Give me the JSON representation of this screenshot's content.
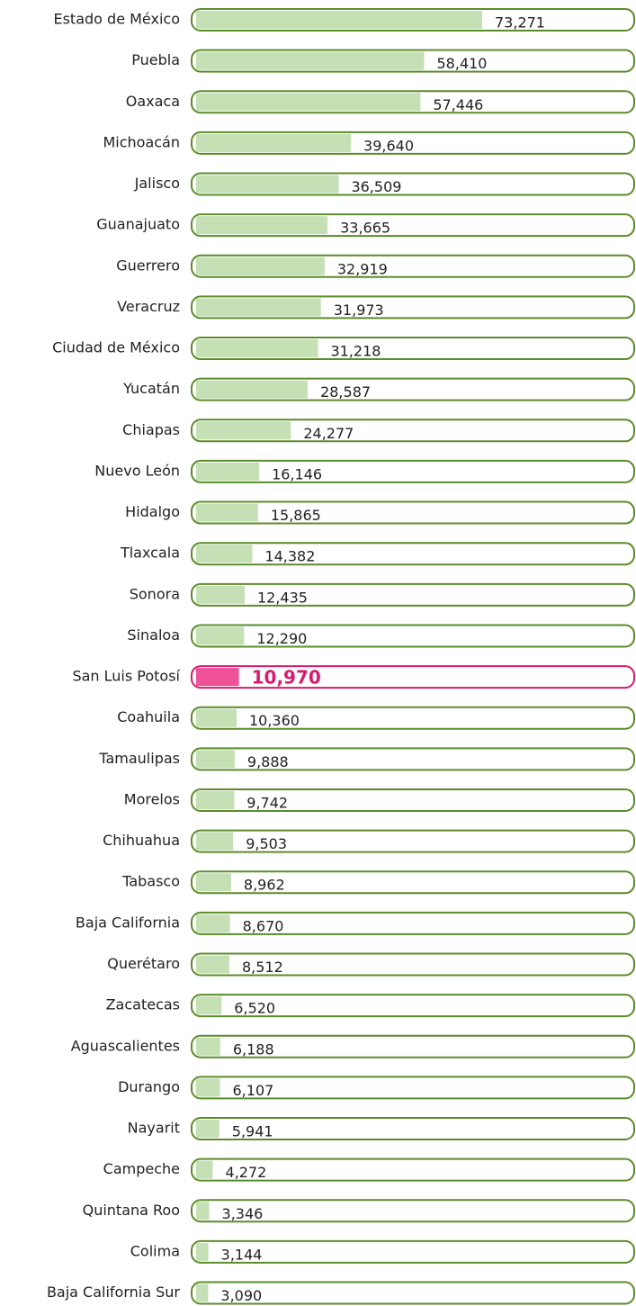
{
  "chart_data": {
    "type": "bar",
    "orientation": "horizontal",
    "categories": [
      "Estado de México",
      "Puebla",
      "Oaxaca",
      "Michoacán",
      "Jalisco",
      "Guanajuato",
      "Guerrero",
      "Veracruz",
      "Ciudad de México",
      "Yucatán",
      "Chiapas",
      "Nuevo León",
      "Hidalgo",
      "Tlaxcala",
      "Sonora",
      "Sinaloa",
      "San Luis Potosí",
      "Coahuila",
      "Tamaulipas",
      "Morelos",
      "Chihuahua",
      "Tabasco",
      "Baja California",
      "Querétaro",
      "Zacatecas",
      "Aguascalientes",
      "Durango",
      "Nayarit",
      "Campeche",
      "Quintana Roo",
      "Colima",
      "Baja California Sur"
    ],
    "values": [
      73271,
      58410,
      57446,
      39640,
      36509,
      33665,
      32919,
      31973,
      31218,
      28587,
      24277,
      16146,
      15865,
      14382,
      12435,
      12290,
      10970,
      10360,
      9888,
      9742,
      9503,
      8962,
      8670,
      8512,
      6520,
      6188,
      6107,
      5941,
      4272,
      3346,
      3144,
      3090
    ],
    "value_labels": [
      "73,271",
      "58,410",
      "57,446",
      "39,640",
      "36,509",
      "33,665",
      "32,919",
      "31,973",
      "31,218",
      "28,587",
      "24,277",
      "16,146",
      "15,865",
      "14,382",
      "12,435",
      "12,290",
      "10,970",
      "10,360",
      "9,888",
      "9,742",
      "9,503",
      "8,962",
      "8,670",
      "8,512",
      "6,520",
      "6,188",
      "6,107",
      "5,941",
      "4,272",
      "3,346",
      "3,144",
      "3,090"
    ],
    "color": "#c5e0b4",
    "outline_color": "#5b8c2a",
    "highlight": "San Luis Potosí",
    "highlight_color": "#f0529a",
    "highlight_outline_color": "#d81b6e"
  }
}
